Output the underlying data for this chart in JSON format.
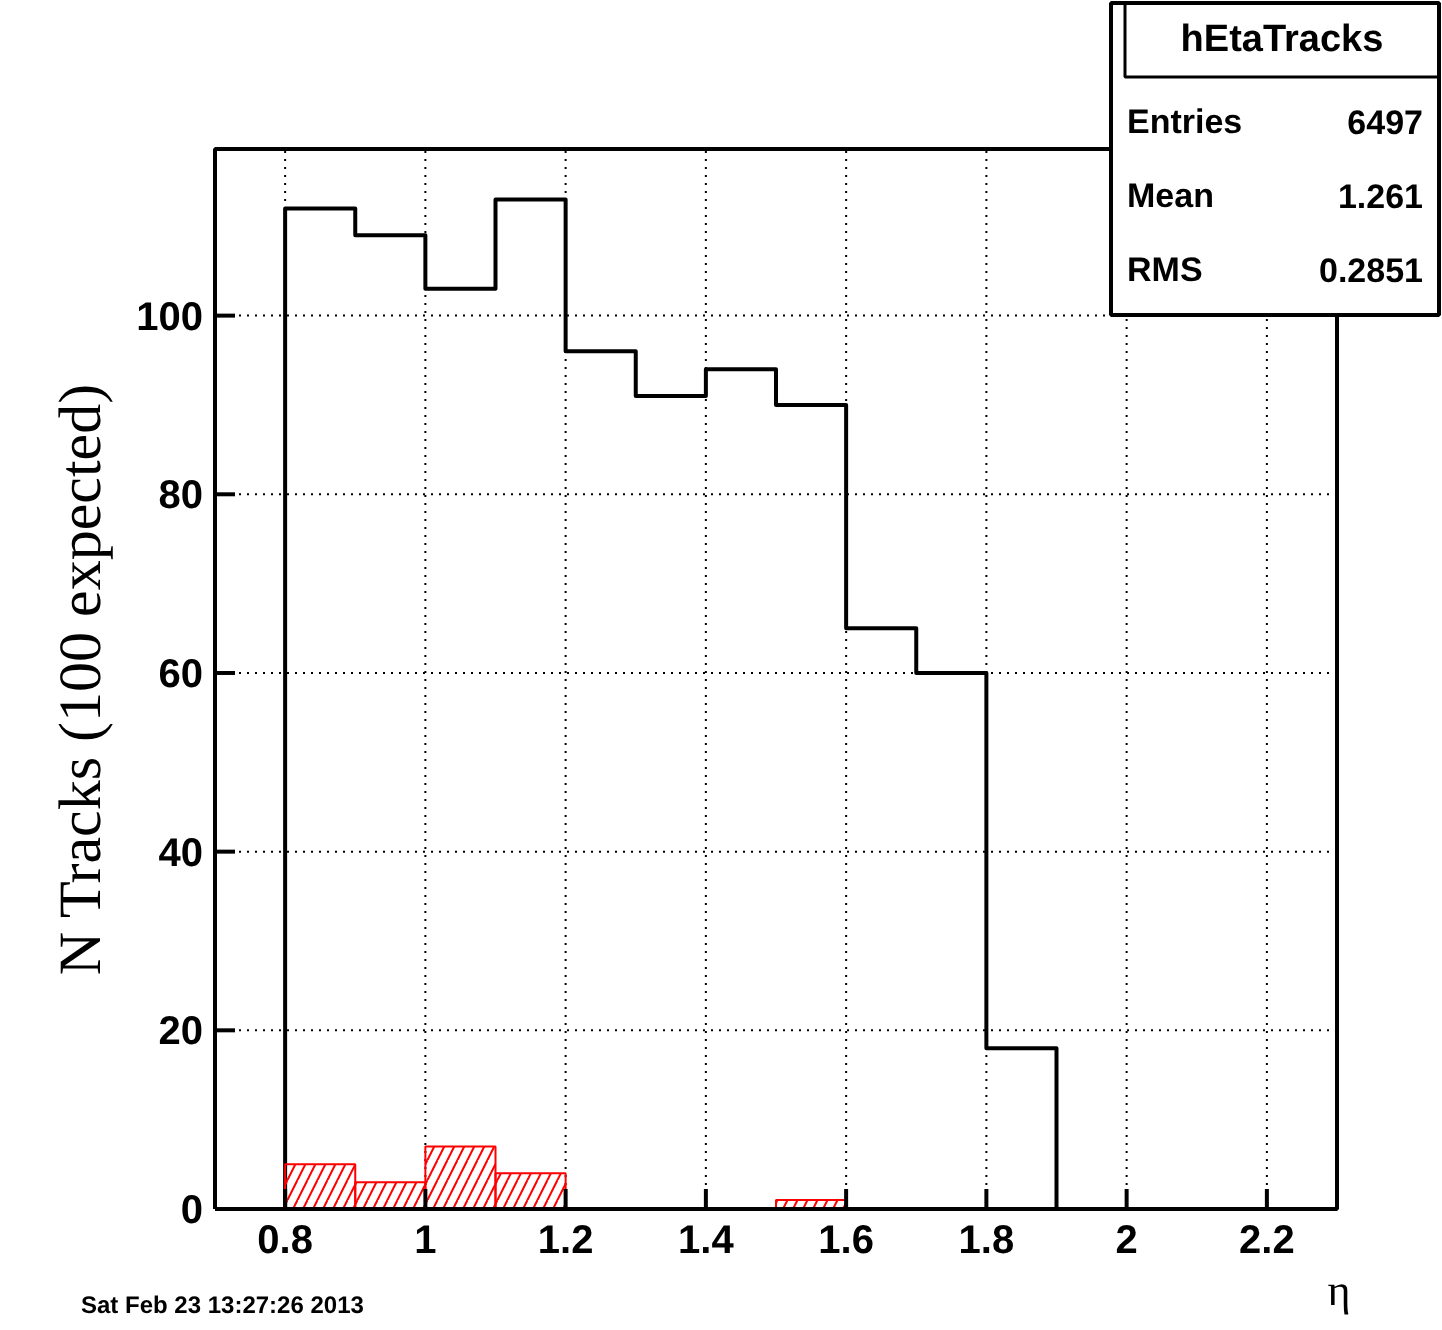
{
  "chart_data": {
    "type": "histogram",
    "title": "hEtaTracks",
    "xlabel": "η",
    "ylabel": "N Tracks (100 expected)",
    "bins": [
      0.7,
      0.8,
      0.9,
      1.0,
      1.1,
      1.2,
      1.3,
      1.4,
      1.5,
      1.6,
      1.7,
      1.8,
      1.9,
      2.0,
      2.1,
      2.2,
      2.3
    ],
    "series": [
      {
        "color": "#000000",
        "values": [
          0,
          112,
          109,
          103,
          113,
          96,
          91,
          94,
          90,
          65,
          60,
          18,
          0,
          0,
          0,
          0
        ]
      },
      {
        "color": "#ff0000",
        "values": [
          0,
          5,
          3,
          7,
          4,
          0,
          0,
          0,
          1,
          0,
          0,
          0,
          0,
          0,
          0,
          0
        ]
      }
    ],
    "xlim": [
      0.7,
      2.3
    ],
    "ylim": [
      0,
      118.65
    ],
    "xticks": [
      0.8,
      1,
      1.2,
      1.4,
      1.6,
      1.8,
      2,
      2.2
    ],
    "yticks": [
      0,
      20,
      40,
      60,
      80,
      100
    ],
    "grid": true,
    "annotations": [
      "Entries 6497",
      "Mean 1.261",
      "RMS 0.2851",
      "Sat Feb 23 13:27:26 2013"
    ]
  }
}
